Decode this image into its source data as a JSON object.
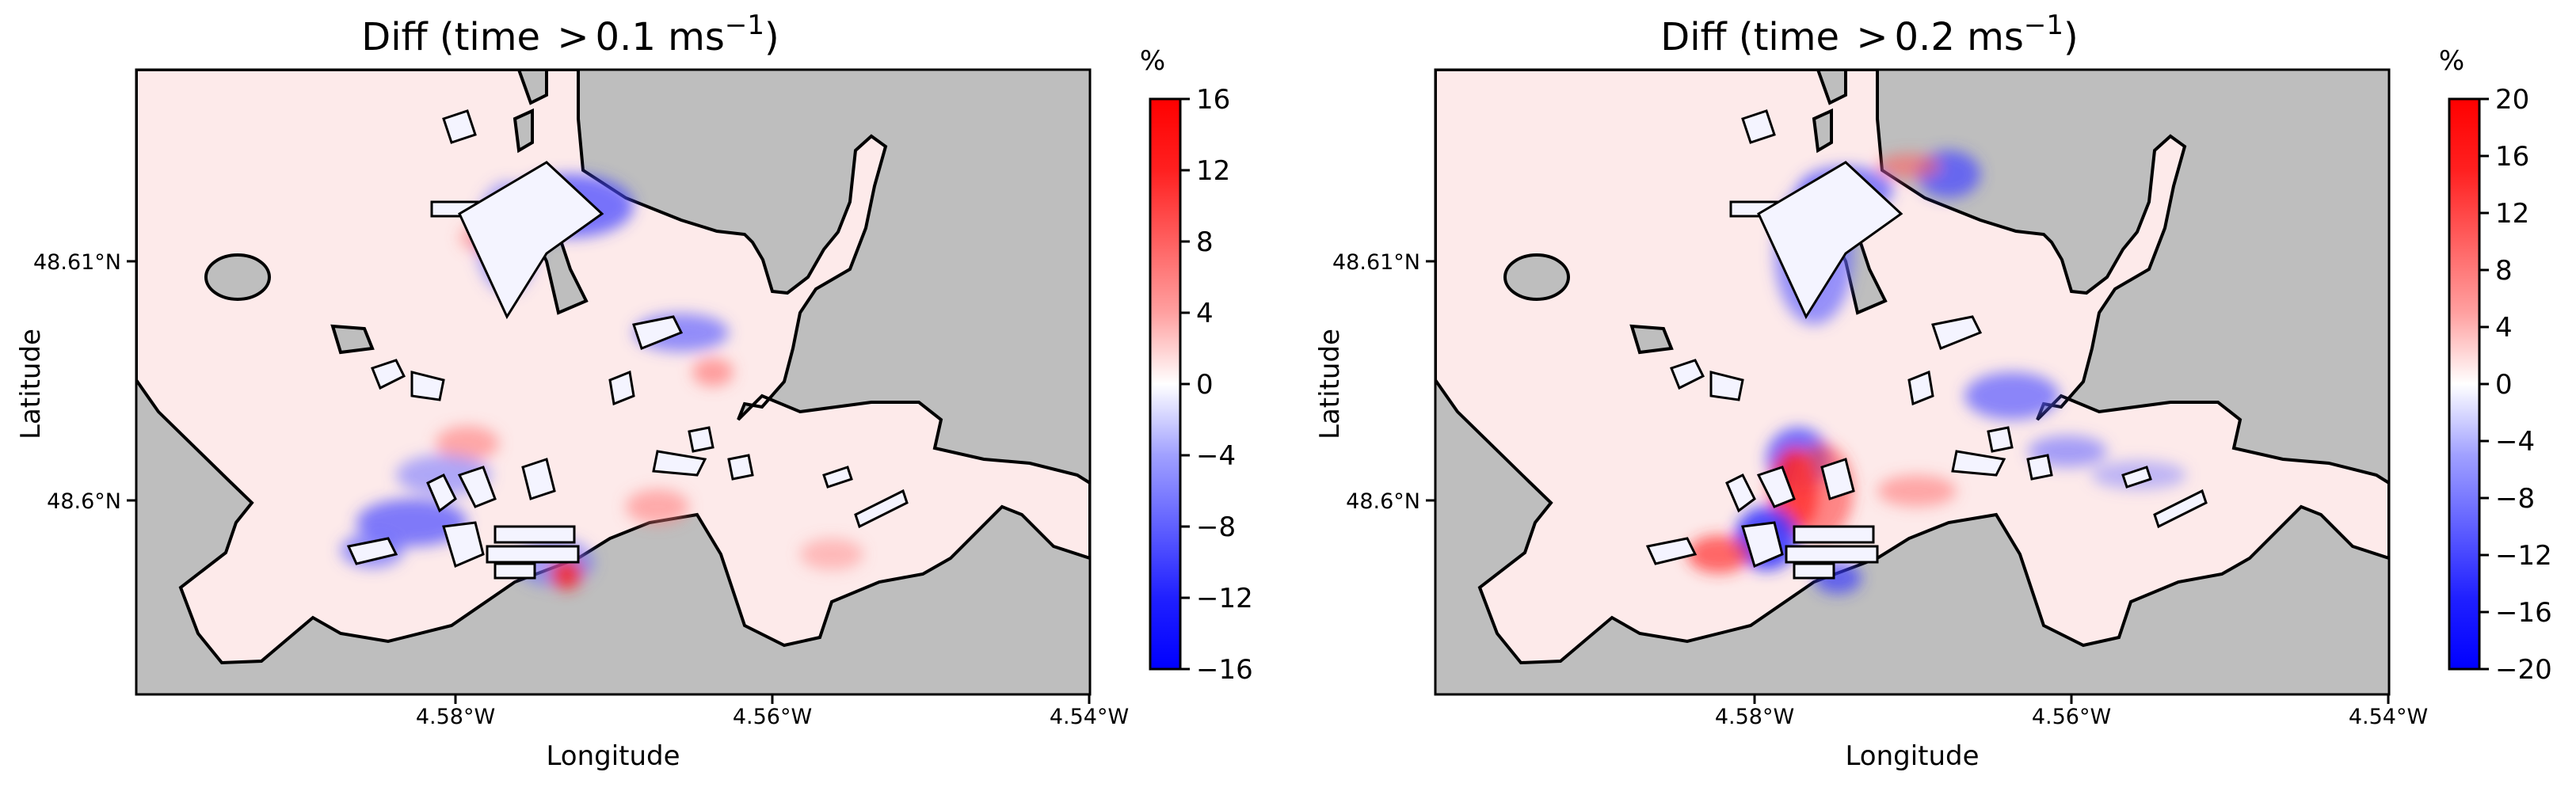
{
  "chart_data": [
    {
      "type": "heatmap",
      "title_main": "Diff (time ",
      "title_gt": ">",
      "title_value": "0.1 ms",
      "title_sup": "−1",
      "title_close": ")",
      "xlabel": "Longitude",
      "ylabel": "Latitude",
      "x_ticks": [
        "4.58°W",
        "4.56°W",
        "4.54°W"
      ],
      "y_ticks": [
        "48.61°N",
        "48.6°N"
      ],
      "colorbar": {
        "label": "%",
        "ticks": [
          "16",
          "12",
          "8",
          "4",
          "0",
          "−4",
          "−8",
          "−12",
          "−16"
        ],
        "range": [
          -16,
          16
        ],
        "cmap": "bwr"
      },
      "colors": {
        "land": "#bebebe",
        "positive": "#ff0000",
        "negative": "#0000ff",
        "neutral": "#ffffff"
      }
    },
    {
      "type": "heatmap",
      "title_main": "Diff (time ",
      "title_gt": ">",
      "title_value": "0.2 ms",
      "title_sup": "−1",
      "title_close": ")",
      "xlabel": "Longitude",
      "ylabel": "Latitude",
      "x_ticks": [
        "4.58°W",
        "4.56°W",
        "4.54°W"
      ],
      "y_ticks": [
        "48.61°N",
        "48.6°N"
      ],
      "colorbar": {
        "label": "%",
        "ticks": [
          "20",
          "16",
          "12",
          "8",
          "4",
          "0",
          "−4",
          "−8",
          "−12",
          "−16",
          "−20"
        ],
        "range": [
          -20,
          20
        ],
        "cmap": "bwr"
      },
      "colors": {
        "land": "#bebebe",
        "positive": "#ff0000",
        "negative": "#0000ff",
        "neutral": "#ffffff"
      }
    }
  ]
}
